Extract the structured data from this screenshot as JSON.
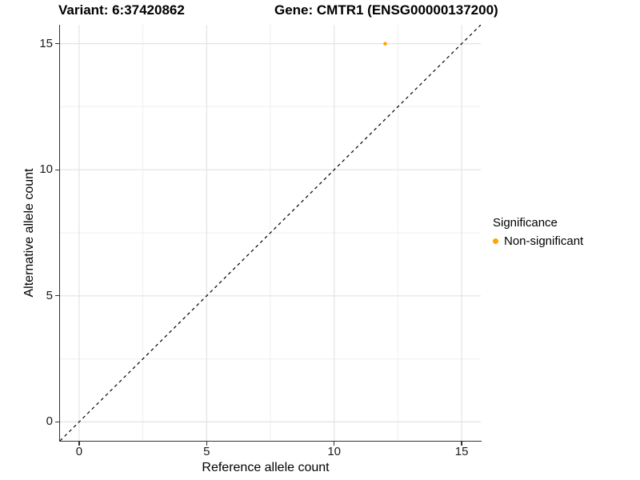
{
  "colors": {
    "point_orange": "#FFA500",
    "axis_line": "#333333",
    "grid_major": "#E3E3E3",
    "grid_minor": "#EFEFEF",
    "reference_line": "#000000",
    "text": "#000000"
  },
  "chart_data": {
    "type": "scatter",
    "title_left": "Variant: 6:37420862",
    "title_right": "Gene: CMTR1 (ENSG00000137200)",
    "xlabel": "Reference allele count",
    "ylabel": "Alternative allele count",
    "xlim": [
      -0.75,
      15.75
    ],
    "ylim": [
      -0.75,
      15.75
    ],
    "x_ticks": [
      0,
      5,
      10,
      15
    ],
    "y_ticks": [
      0,
      5,
      10,
      15
    ],
    "x_minor": [
      2.5,
      7.5,
      12.5
    ],
    "y_minor": [
      2.5,
      7.5,
      12.5
    ],
    "grid": true,
    "series": [
      {
        "name": "Non-significant",
        "color": "#FFA500",
        "points": [
          {
            "x": 12,
            "y": 15
          }
        ]
      }
    ],
    "reference_line": {
      "type": "identity",
      "style": "dashed",
      "dash": "4,4",
      "color": "#000000"
    },
    "legend": {
      "title": "Significance",
      "position": "right",
      "entries": [
        {
          "label": "Non-significant",
          "color": "#FFA500"
        }
      ]
    }
  }
}
